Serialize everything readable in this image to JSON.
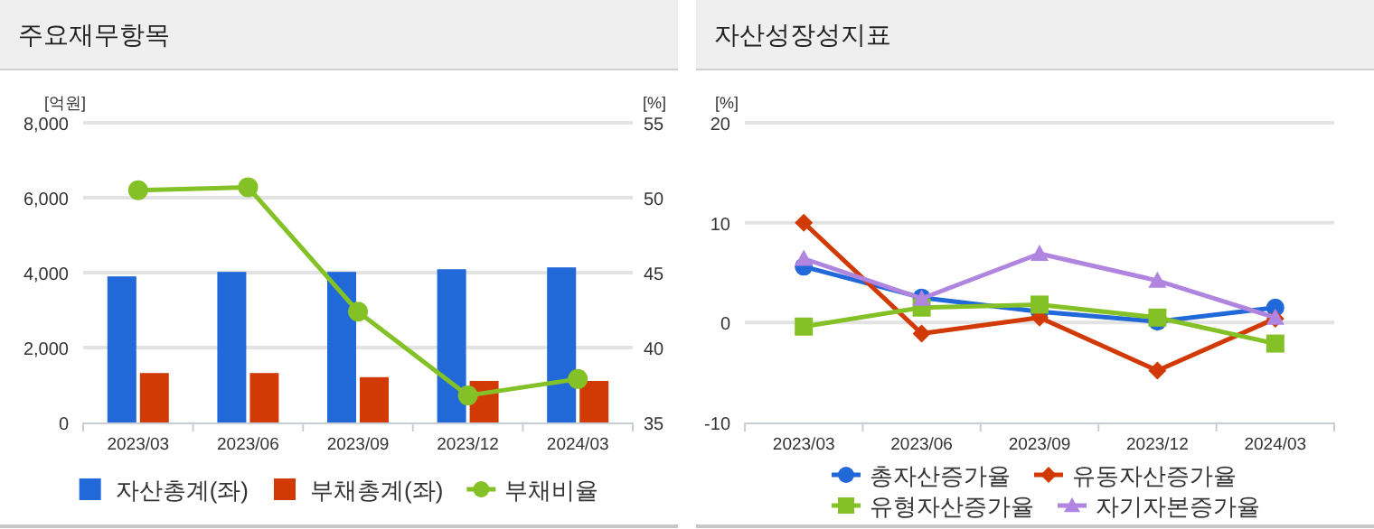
{
  "chart_data": [
    {
      "type": "bar",
      "title": "주요재무항목",
      "ylabel": "[억원]",
      "y2label": "[%]",
      "categories": [
        "2023/03",
        "2023/06",
        "2023/09",
        "2023/12",
        "2024/03"
      ],
      "series": [
        {
          "name": "자산총계(좌)",
          "color": "#2168d8",
          "values": [
            3900,
            4020,
            4020,
            4090,
            4140
          ]
        },
        {
          "name": "부채총계(좌)",
          "color": "#d23a05",
          "values": [
            1320,
            1320,
            1210,
            1110,
            1110
          ]
        },
        {
          "name": "부채비율",
          "type": "line",
          "axis": "y2",
          "color": "#84c126",
          "marker": "circle",
          "values": [
            50.5,
            50.7,
            42.4,
            36.8,
            37.9
          ]
        }
      ],
      "ylim": [
        0,
        8000
      ],
      "yticks": [
        0,
        {
          "value": 2000,
          "label": "2,000"
        },
        {
          "value": 4000,
          "label": "4,000"
        },
        {
          "value": 6000,
          "label": "6,000"
        },
        {
          "value": 8000,
          "label": "8,000"
        }
      ],
      "y2lim": [
        35,
        55
      ],
      "y2ticks": [
        35,
        40,
        45,
        50,
        55
      ],
      "grid": "y",
      "legend": "bottom"
    },
    {
      "type": "line",
      "title": "자산성장성지표",
      "ylabel": "[%]",
      "categories": [
        "2023/03",
        "2023/06",
        "2023/09",
        "2023/12",
        "2024/03"
      ],
      "series": [
        {
          "name": "총자산증가율",
          "color": "#2168d8",
          "marker": "circle",
          "values": [
            5.6,
            2.5,
            1.1,
            0.1,
            1.5
          ]
        },
        {
          "name": "유동자산증가율",
          "color": "#d23a05",
          "marker": "diamond",
          "values": [
            10.0,
            -1.1,
            0.5,
            -4.8,
            0.4
          ]
        },
        {
          "name": "유형자산증가율",
          "color": "#84c126",
          "marker": "square",
          "values": [
            -0.4,
            1.5,
            1.8,
            0.5,
            -2.1
          ]
        },
        {
          "name": "자기자본증가율",
          "color": "#b085e0",
          "marker": "triangle",
          "values": [
            6.4,
            2.4,
            6.9,
            4.2,
            0.5
          ]
        }
      ],
      "ylim": [
        -10,
        20
      ],
      "yticks": [
        -10,
        0,
        10,
        20
      ],
      "grid": "y",
      "legend": "bottom"
    }
  ]
}
